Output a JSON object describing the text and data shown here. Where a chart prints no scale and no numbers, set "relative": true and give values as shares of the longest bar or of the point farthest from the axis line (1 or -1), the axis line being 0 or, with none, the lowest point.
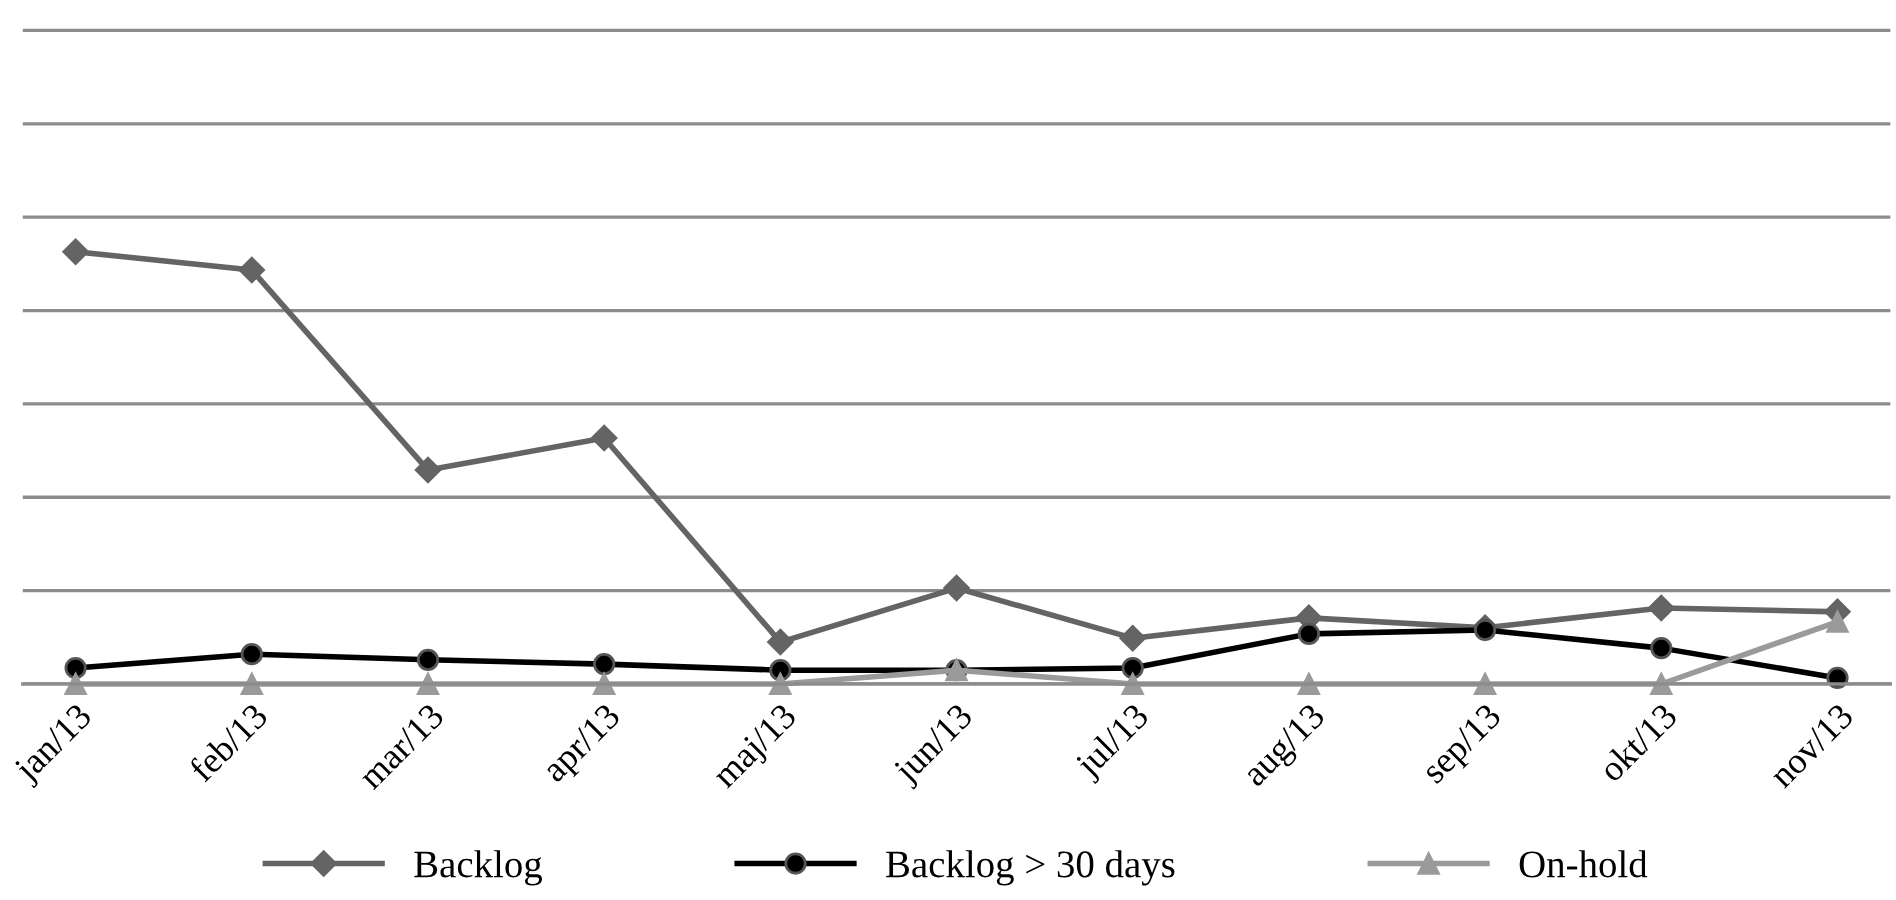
{
  "chart_data": {
    "type": "line",
    "relative": true,
    "grid": "y",
    "legend": "bottom",
    "line_style": "solid",
    "categories": [
      "jan/13",
      "feb/13",
      "mar/13",
      "apr/13",
      "maj/13",
      "jun/13",
      "jul/13",
      "aug/13",
      "sep/13",
      "okt/13",
      "nov/13"
    ],
    "series": [
      {
        "name": "Backlog",
        "color": "#646464",
        "marker": "diamond",
        "values": [
          1,
          0.958,
          0.495,
          0.569,
          0.097,
          0.222,
          0.106,
          0.153,
          0.13,
          0.176,
          0.167
        ]
      },
      {
        "name": "Backlog > 30 days",
        "color": "#000000",
        "marker": "circle",
        "values": [
          0.037,
          0.069,
          0.056,
          0.046,
          0.032,
          0.032,
          0.037,
          0.116,
          0.125,
          0.083,
          0.014
        ]
      },
      {
        "name": "On-hold",
        "color": "#9a9a9a",
        "marker": "triangle",
        "values": [
          0,
          0,
          0,
          0,
          0,
          0.032,
          0,
          0,
          0,
          0,
          0.144
        ]
      }
    ]
  }
}
